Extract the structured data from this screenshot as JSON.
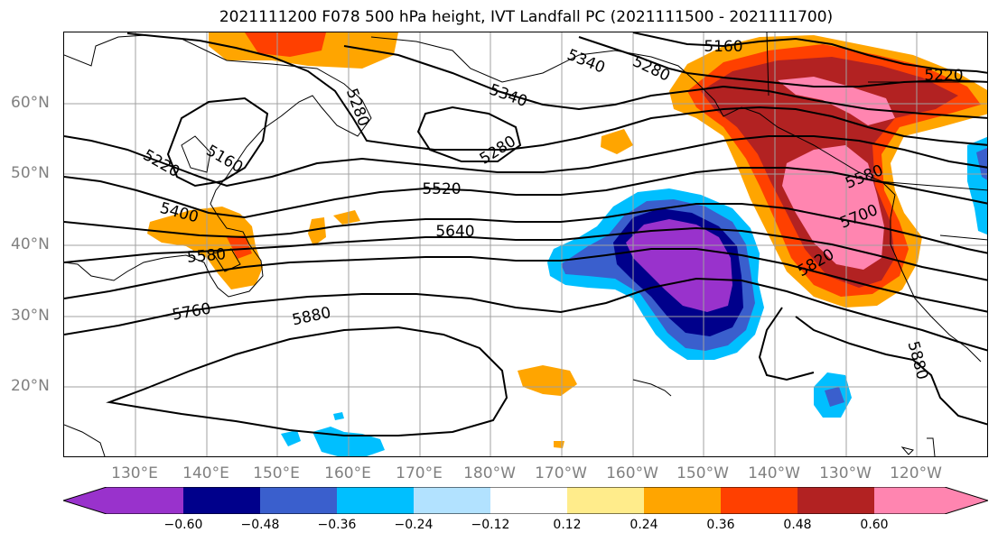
{
  "title": "2021111200 F078 500 hPa height, IVT Landfall PC (2021111500 - 2021111700)",
  "lat_labels": [
    "60°N",
    "50°N",
    "40°N",
    "30°N",
    "20°N"
  ],
  "lon_labels": [
    "130°E",
    "140°E",
    "150°E",
    "160°E",
    "170°E",
    "180°W",
    "170°W",
    "160°W",
    "150°W",
    "140°W",
    "130°W",
    "120°W"
  ],
  "colorbar": {
    "ticks": [
      "−0.60",
      "−0.48",
      "−0.36",
      "−0.24",
      "−0.12",
      "0.12",
      "0.24",
      "0.36",
      "0.48",
      "0.60"
    ],
    "colors": [
      "#9932cc",
      "#00008b",
      "#3a5fcd",
      "#00bfff",
      "#b2e2ff",
      "#ffffff",
      "#ffec8b",
      "#ffa500",
      "#ff4000",
      "#b22222",
      "#ff85b0"
    ]
  },
  "contour_labels": [
    "5160",
    "5220",
    "5280",
    "5340",
    "5340",
    "5280",
    "5280",
    "5220",
    "5160",
    "5400",
    "5520",
    "5580",
    "5640",
    "5760",
    "5880",
    "5880",
    "5820",
    "5700",
    "5580"
  ],
  "fill_colors": {
    "purple": "#9932cc",
    "navy": "#00008b",
    "blue": "#3a5fcd",
    "cyan": "#00bfff",
    "orange": "#ffa500",
    "redorange": "#ff4000",
    "darkred": "#b22222",
    "pink": "#ff85b0"
  }
}
